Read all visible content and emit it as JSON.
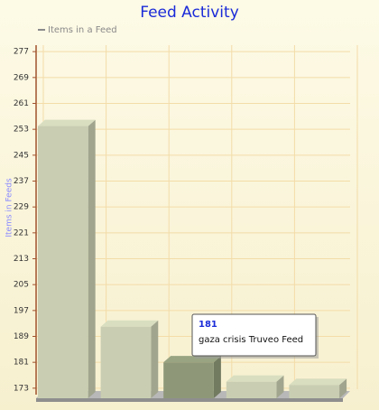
{
  "chart_data": {
    "type": "bar3d",
    "title": "Feed Activity",
    "y_label": "Items in Feeds",
    "series": [
      {
        "name": "Items in a Feed",
        "color": "#c9ceb2",
        "values": [
          254,
          192,
          181,
          175,
          174
        ]
      }
    ],
    "categories": [
      null,
      null,
      "gaza crisis Truveo Feed",
      null,
      null
    ],
    "highlight_index": 2,
    "highlight_color": "#8e9878",
    "ylim": [
      171,
      279
    ],
    "yticks": [
      173,
      181,
      189,
      197,
      205,
      213,
      221,
      229,
      237,
      245,
      253,
      261,
      269,
      277
    ],
    "grid": true
  }
}
